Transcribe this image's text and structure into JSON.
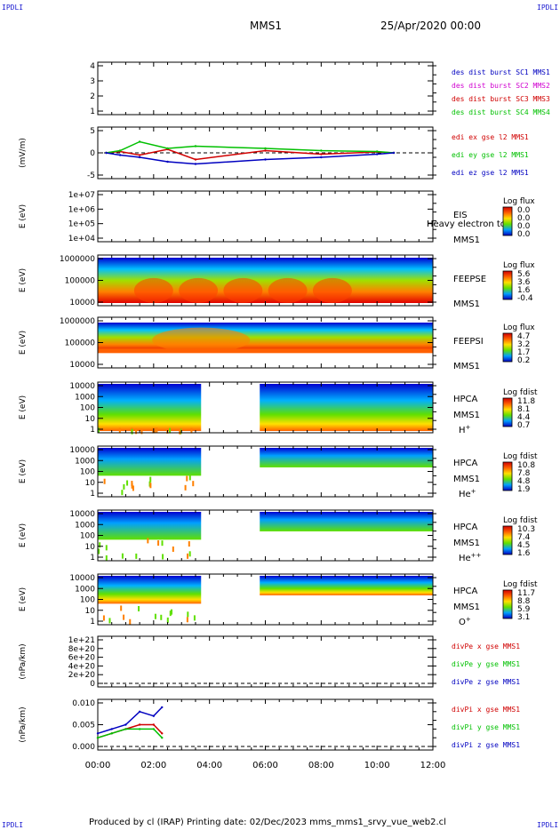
{
  "corner_label": "IPDLI",
  "header": {
    "mission": "MMS1",
    "datetime": "25/Apr/2020 00:00"
  },
  "footer": {
    "text": "Produced by cl (IRAP)   Printing date: 02/Dec/2023   mms_mms1_srvy_vue_web2.cl"
  },
  "x_axis": {
    "ticks": [
      "00:00",
      "02:00",
      "04:00",
      "06:00",
      "08:00",
      "10:00",
      "12:00"
    ]
  },
  "colors": {
    "red": "#d00000",
    "magenta": "#d000d0",
    "green": "#00c000",
    "blue": "#0000c0",
    "frame": "#000000"
  },
  "panels": [
    {
      "id": "dist-burst",
      "yticks": [
        "4",
        "3",
        "2",
        "1"
      ],
      "ylabel": "",
      "legend": [
        {
          "text": "des dist burst SC1 MMS1",
          "color": "#0000c0"
        },
        {
          "text": "des dist burst SC2 MMS2",
          "color": "#d000d0"
        },
        {
          "text": "des dist burst SC3 MMS3",
          "color": "#d00000"
        },
        {
          "text": "des dist burst SC4 MMS4",
          "color": "#00c000"
        }
      ]
    },
    {
      "id": "edi-e",
      "yticks": [
        "5",
        "0",
        "-5"
      ],
      "ylabel": "(mV/m)",
      "legend": [
        {
          "text": "edi ex gse l2 MMS1",
          "color": "#d00000"
        },
        {
          "text": "edi ey gse l2 MMS1",
          "color": "#00c000"
        },
        {
          "text": "edi ez gse l2 MMS1",
          "color": "#0000c0"
        }
      ]
    },
    {
      "id": "eis",
      "yticks": [
        "1e+07",
        "1e+06",
        "1e+05",
        "1e+04"
      ],
      "ylabel": "E (eV)",
      "instrument": [
        "EIS",
        "MMS1"
      ],
      "overlay": "Heavy electron to",
      "cbar": {
        "title": "Log flux",
        "ticks": [
          "0.0",
          "0.0",
          "0.0",
          "0.0"
        ]
      }
    },
    {
      "id": "feeps-e",
      "yticks": [
        "1000000",
        "100000",
        "10000"
      ],
      "ylabel": "E (eV)",
      "instrument": [
        "FEEPSE",
        "MMS1"
      ],
      "cbar": {
        "title": "Log flux",
        "ticks": [
          "5.6",
          "3.6",
          "1.6",
          "-0.4"
        ]
      }
    },
    {
      "id": "feeps-i",
      "yticks": [
        "1000000",
        "100000",
        "10000"
      ],
      "ylabel": "E (eV)",
      "instrument": [
        "FEEPSI",
        "MMS1"
      ],
      "cbar": {
        "title": "Log flux",
        "ticks": [
          "4.7",
          "3.2",
          "1.7",
          "0.2"
        ]
      }
    },
    {
      "id": "hpca-h",
      "yticks": [
        "10000",
        "1000",
        "100",
        "10",
        "1"
      ],
      "ylabel": "E (eV)",
      "instrument": [
        "HPCA",
        "MMS1",
        "H+"
      ],
      "cbar": {
        "title": "Log fdist",
        "ticks": [
          "11.8",
          "8.1",
          "4.4",
          "0.7"
        ]
      }
    },
    {
      "id": "hpca-he",
      "yticks": [
        "10000",
        "1000",
        "100",
        "10",
        "1"
      ],
      "ylabel": "E (eV)",
      "instrument": [
        "HPCA",
        "MMS1",
        "He+"
      ],
      "cbar": {
        "title": "Log fdist",
        "ticks": [
          "10.8",
          "7.8",
          "4.8",
          "1.9"
        ]
      }
    },
    {
      "id": "hpca-hepp",
      "yticks": [
        "10000",
        "1000",
        "100",
        "10",
        "1"
      ],
      "ylabel": "E (eV)",
      "instrument": [
        "HPCA",
        "MMS1",
        "He++"
      ],
      "cbar": {
        "title": "Log fdist",
        "ticks": [
          "10.3",
          "7.4",
          "4.5",
          "1.6"
        ]
      }
    },
    {
      "id": "hpca-o",
      "yticks": [
        "10000",
        "1000",
        "100",
        "10",
        "1"
      ],
      "ylabel": "E (eV)",
      "instrument": [
        "HPCA",
        "MMS1",
        "O+"
      ],
      "cbar": {
        "title": "Log fdist",
        "ticks": [
          "11.7",
          "8.8",
          "5.9",
          "3.1"
        ]
      }
    },
    {
      "id": "divpe",
      "yticks": [
        "1e+21",
        "8e+20",
        "6e+20",
        "4e+20",
        "2e+20",
        "0"
      ],
      "ylabel": "(nPa/km)",
      "legend": [
        {
          "text": "divPe x gse MMS1",
          "color": "#d00000"
        },
        {
          "text": "divPe y gse MMS1",
          "color": "#00c000"
        },
        {
          "text": "divPe z gse MMS1",
          "color": "#0000c0"
        }
      ]
    },
    {
      "id": "divpi",
      "yticks": [
        "0.010",
        "0.005",
        "0.000"
      ],
      "ylabel": "(nPa/km)",
      "legend": [
        {
          "text": "divPi x gse MMS1",
          "color": "#d00000"
        },
        {
          "text": "divPi y gse MMS1",
          "color": "#00c000"
        },
        {
          "text": "divPi z gse MMS1",
          "color": "#0000c0"
        }
      ]
    }
  ],
  "chart_data": {
    "type": "line",
    "title": "MMS1",
    "x_range": [
      "00:00",
      "12:00"
    ],
    "x_ticks": [
      "00:00",
      "02:00",
      "04:00",
      "06:00",
      "08:00",
      "10:00",
      "12:00"
    ],
    "data_gaps_hours": [
      [
        3.7,
        5.8
      ]
    ],
    "series": [
      {
        "name": "edi ex gse l2 MMS1",
        "x": [
          0.3,
          0.8,
          1.5,
          2.5,
          3.5,
          6.0,
          8.0,
          10.0,
          10.6
        ],
        "values": [
          0,
          0.3,
          -0.5,
          0.8,
          -1.5,
          0.5,
          -0.3,
          0.2,
          0
        ]
      },
      {
        "name": "edi ey gse l2 MMS1",
        "x": [
          0.3,
          0.8,
          1.5,
          2.5,
          3.5,
          6.0,
          8.0,
          10.0,
          10.6
        ],
        "values": [
          0,
          0.5,
          2.5,
          1.0,
          1.5,
          1.0,
          0.5,
          0.3,
          0
        ]
      },
      {
        "name": "edi ez gse l2 MMS1",
        "x": [
          0.3,
          0.8,
          1.5,
          2.5,
          3.5,
          6.0,
          8.0,
          10.0,
          10.6
        ],
        "values": [
          0,
          -0.5,
          -1.0,
          -2.0,
          -2.5,
          -1.5,
          -1.0,
          -0.3,
          0
        ]
      },
      {
        "name": "divPi x gse MMS1",
        "x": [
          0.0,
          0.5,
          1.0,
          1.5,
          2.0,
          2.3
        ],
        "values": [
          0.002,
          0.003,
          0.004,
          0.005,
          0.005,
          0.003
        ]
      },
      {
        "name": "divPi y gse MMS1",
        "x": [
          0.0,
          0.5,
          1.0,
          1.5,
          2.0,
          2.3
        ],
        "values": [
          0.002,
          0.003,
          0.004,
          0.004,
          0.004,
          0.002
        ]
      },
      {
        "name": "divPi z gse MMS1",
        "x": [
          0.0,
          0.5,
          1.0,
          1.5,
          2.0,
          2.3
        ],
        "values": [
          0.003,
          0.004,
          0.005,
          0.008,
          0.007,
          0.009
        ]
      }
    ]
  }
}
